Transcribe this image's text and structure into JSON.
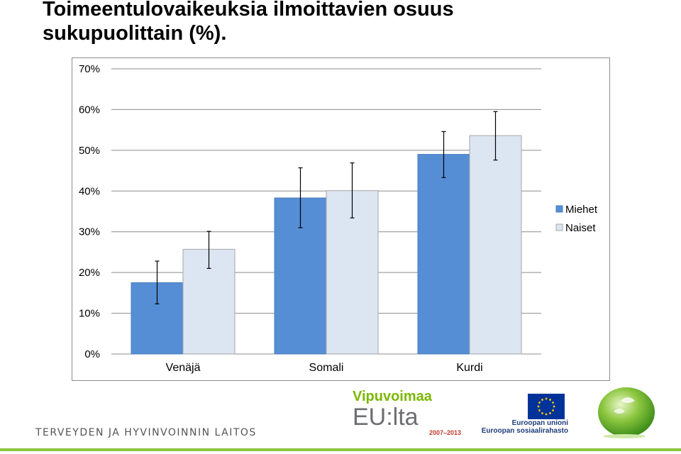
{
  "title_line1": "Toimeentulovaikeuksia ilmoittavien osuus",
  "title_line2": "sukupuolittain (%).",
  "chart_data": {
    "type": "bar",
    "categories": [
      "Venäjä",
      "Somali",
      "Kurdi"
    ],
    "series": [
      {
        "name": "Miehet",
        "values": [
          17.5,
          38.3,
          49
        ],
        "err_low": [
          12.3,
          31,
          43.3
        ],
        "err_high": [
          22.8,
          45.7,
          54.6
        ],
        "color": "#558ed5"
      },
      {
        "name": "Naiset",
        "values": [
          25.7,
          40.1,
          53.6
        ],
        "err_low": [
          21,
          33.4,
          47.6
        ],
        "err_high": [
          30.1,
          46.9,
          59.5
        ],
        "color": "#dce6f2"
      }
    ],
    "ylim": [
      0,
      70
    ],
    "yticks": [
      "0%",
      "10%",
      "20%",
      "30%",
      "40%",
      "50%",
      "60%",
      "70%"
    ],
    "grid": true,
    "legend": "right"
  },
  "footer": {
    "institute": "TERVEYDEN JA HYVINVOINNIN LAITOS",
    "vipuvoimaa": "Vipuvoimaa",
    "eulta": "EU:lta",
    "years": "2007–2013",
    "eu_union": "Euroopan unioni",
    "eu_fund": "Euroopan sosiaalirahasto"
  }
}
